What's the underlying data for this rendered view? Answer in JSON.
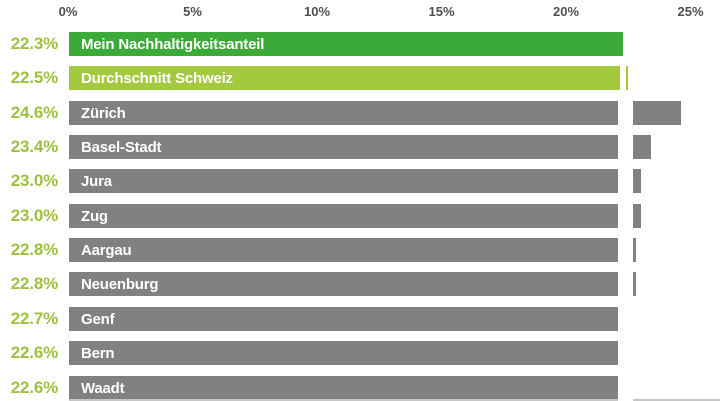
{
  "chart_data": {
    "type": "bar",
    "orientation": "horizontal",
    "title": "",
    "xlabel": "",
    "ylabel": "",
    "xlim": [
      0,
      25
    ],
    "axis_position": "top",
    "gridlines": "dotted-vertical",
    "legend": "none",
    "x_axis": {
      "unit": "%",
      "tick_values": [
        0,
        5,
        10,
        15,
        20,
        25
      ],
      "tick_labels": [
        "0%",
        "5%",
        "10%",
        "15%",
        "20%",
        "25%"
      ]
    },
    "rows": [
      {
        "label": "Mein Nachhaltigkeitsanteil",
        "value": 22.3,
        "value_label": "22.3%",
        "color": "highlight"
      },
      {
        "label": "Durchschnitt Schweiz",
        "value": 22.5,
        "value_label": "22.5%",
        "color": "average"
      },
      {
        "label": "Zürich",
        "value": 24.6,
        "value_label": "24.6%",
        "color": "default"
      },
      {
        "label": "Basel-Stadt",
        "value": 23.4,
        "value_label": "23.4%",
        "color": "default"
      },
      {
        "label": "Jura",
        "value": 23.0,
        "value_label": "23.0%",
        "color": "default"
      },
      {
        "label": "Zug",
        "value": 23.0,
        "value_label": "23.0%",
        "color": "default"
      },
      {
        "label": "Aargau",
        "value": 22.8,
        "value_label": "22.8%",
        "color": "default"
      },
      {
        "label": "Neuenburg",
        "value": 22.8,
        "value_label": "22.8%",
        "color": "default"
      },
      {
        "label": "Genf",
        "value": 22.7,
        "value_label": "22.7%",
        "color": "default"
      },
      {
        "label": "Bern",
        "value": 22.6,
        "value_label": "22.6%",
        "color": "default"
      },
      {
        "label": "Waadt",
        "value": 22.6,
        "value_label": "22.6%",
        "color": "default"
      }
    ],
    "markers": [
      {
        "name": "mein-nachhaltigkeitsanteil-marker-line",
        "value": 22.3,
        "style": "dotted"
      },
      {
        "name": "durchschnitt-schweiz-marker-line",
        "value": 22.5,
        "style": "solid"
      }
    ]
  },
  "colors": {
    "highlight_bar": "#3caa38",
    "average_bar": "#a3c93f",
    "default_bar": "#818181",
    "value_label": "#9dc13f",
    "bar_text": "#ffffff",
    "axis_text": "#4f4f4e",
    "axis_line": "#3e3e3d",
    "gridline": "#cbcbcb",
    "marker_dotted": "#2f9e2f",
    "marker_solid": "#9cc636",
    "next_row_sliver": "#c6c6c6"
  }
}
